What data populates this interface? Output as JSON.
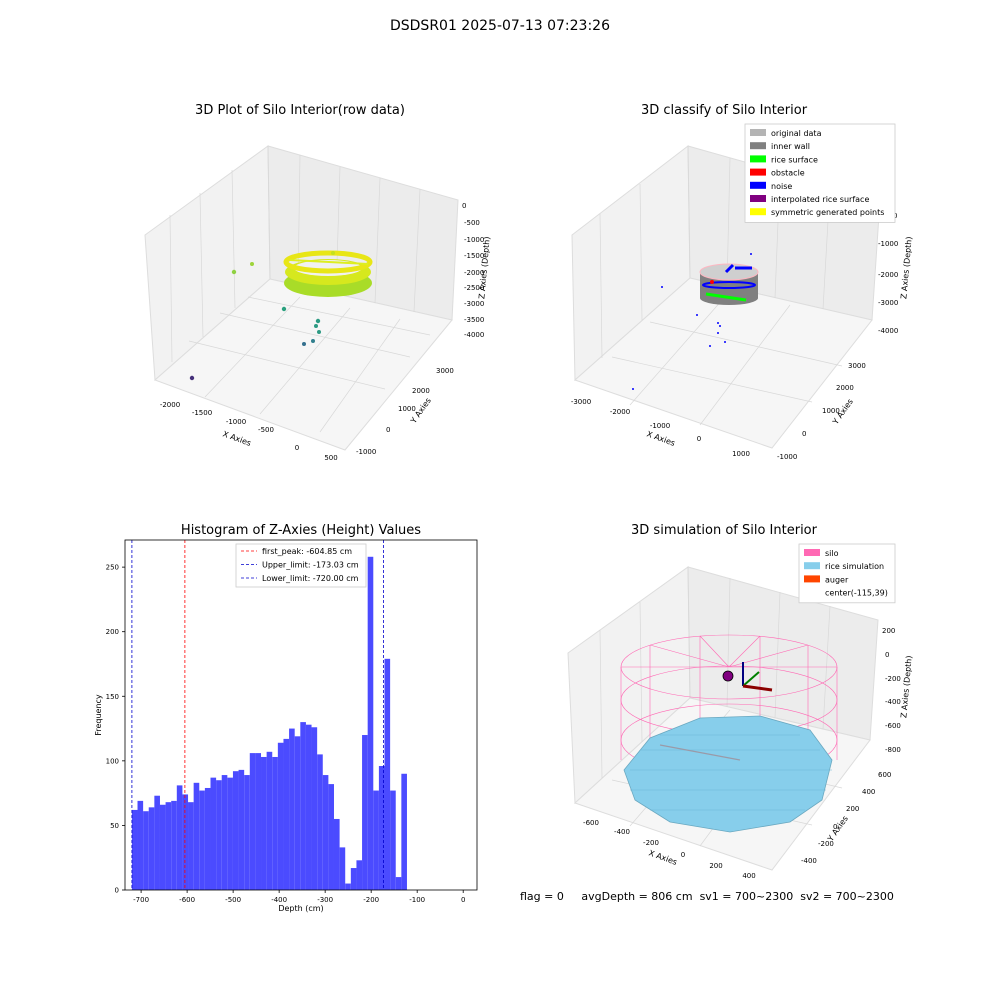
{
  "suptitle": "DSDSR01 2025-07-13 07:23:26",
  "footer": {
    "flag": "flag = 0",
    "avg": "avgDepth = 806 cm",
    "sv1": "sv1 = 700~2300",
    "sv2": "sv2 = 700~2300"
  },
  "colors": {
    "hist": "#4b4bff",
    "peak": "#ff0000",
    "limit": "#0000cc",
    "silo": "#ff69b4",
    "rice": "#87ceeb",
    "auger": "#ff4500"
  },
  "chart_data": [
    {
      "type": "scatter",
      "subtype": "3d",
      "title": "3D Plot of Silo Interior(row data)",
      "xlabel": "X Axies",
      "ylabel": "Y Axies",
      "zlabel": "Z Axies (Depth)",
      "xticks": [
        "-2000",
        "-1500",
        "-1000",
        "-500",
        "0",
        "500"
      ],
      "yticks": [
        "-1000",
        "0",
        "1000",
        "2000",
        "3000"
      ],
      "zticks": [
        "0",
        "-500",
        "-1000",
        "-1500",
        "-2000",
        "-2500",
        "-3000",
        "-3500",
        "-4000"
      ]
    },
    {
      "type": "scatter",
      "subtype": "3d",
      "title": "3D classify of Silo Interior",
      "xlabel": "X Axies",
      "ylabel": "Y Axies",
      "zlabel": "Z Axies (Depth)",
      "xticks": [
        "-3000",
        "-2000",
        "-1000",
        "0",
        "1000"
      ],
      "yticks": [
        "-1000",
        "0",
        "1000",
        "2000",
        "3000"
      ],
      "zticks": [
        "0",
        "-1000",
        "-2000",
        "-3000",
        "-4000"
      ],
      "legend": [
        {
          "label": "original data",
          "color": "#b4b4b4"
        },
        {
          "label": "inner wall",
          "color": "#808080"
        },
        {
          "label": "rice surface",
          "color": "#00ff00"
        },
        {
          "label": "obstacle",
          "color": "#ff0000"
        },
        {
          "label": "noise",
          "color": "#0000ff"
        },
        {
          "label": "interpolated rice surface",
          "color": "#800080"
        },
        {
          "label": "symmetric generated points",
          "color": "#ffff00"
        }
      ]
    },
    {
      "type": "bar",
      "title": "Histogram of Z-Axies (Height) Values",
      "xlabel": "Depth (cm)",
      "ylabel": "Frequency",
      "xlim": [
        -735,
        30
      ],
      "ylim": [
        0,
        271
      ],
      "xticks": [
        -700,
        -600,
        -500,
        -400,
        -300,
        -200,
        -100,
        0
      ],
      "yticks": [
        0,
        50,
        100,
        150,
        200,
        250
      ],
      "bin_start": -720,
      "bin_width": 12.2,
      "values": [
        62,
        69,
        61,
        64,
        73,
        66,
        68,
        69,
        81,
        74,
        68,
        83,
        77,
        79,
        87,
        85,
        89,
        87,
        92,
        93,
        89,
        106,
        106,
        103,
        107,
        103,
        114,
        117,
        125,
        119,
        130,
        128,
        126,
        105,
        89,
        82,
        55,
        33,
        5,
        17,
        23,
        120,
        258,
        77,
        96,
        179,
        77,
        10,
        90
      ],
      "lines": [
        {
          "label": "first_peak: -604.85 cm",
          "x": -604.85,
          "color": "#ff0000"
        },
        {
          "label": "Upper_limit: -173.03 cm",
          "x": -173.03,
          "color": "#0000cc"
        },
        {
          "label": "Lower_limit: -720.00 cm",
          "x": -720.0,
          "color": "#0000cc"
        }
      ],
      "legend_loc": "upper center"
    },
    {
      "type": "scatter",
      "subtype": "3d",
      "title": "3D simulation of Silo Interior",
      "xlabel": "X Axies",
      "ylabel": "Y Axies",
      "zlabel": "Z Axies (Depth)",
      "xticks": [
        "-600",
        "-400",
        "-200",
        "0",
        "200",
        "400"
      ],
      "yticks": [
        "600",
        "400",
        "200",
        "0",
        "-200",
        "-400"
      ],
      "zticks": [
        "200",
        "0",
        "-200",
        "-400",
        "-600",
        "-800"
      ],
      "legend": [
        {
          "label": "silo",
          "color": "#ff69b4"
        },
        {
          "label": "rice simulation",
          "color": "#87ceeb"
        },
        {
          "label": "auger",
          "color": "#ff4500"
        },
        {
          "label": "center(-115,39)",
          "color": ""
        }
      ]
    }
  ]
}
